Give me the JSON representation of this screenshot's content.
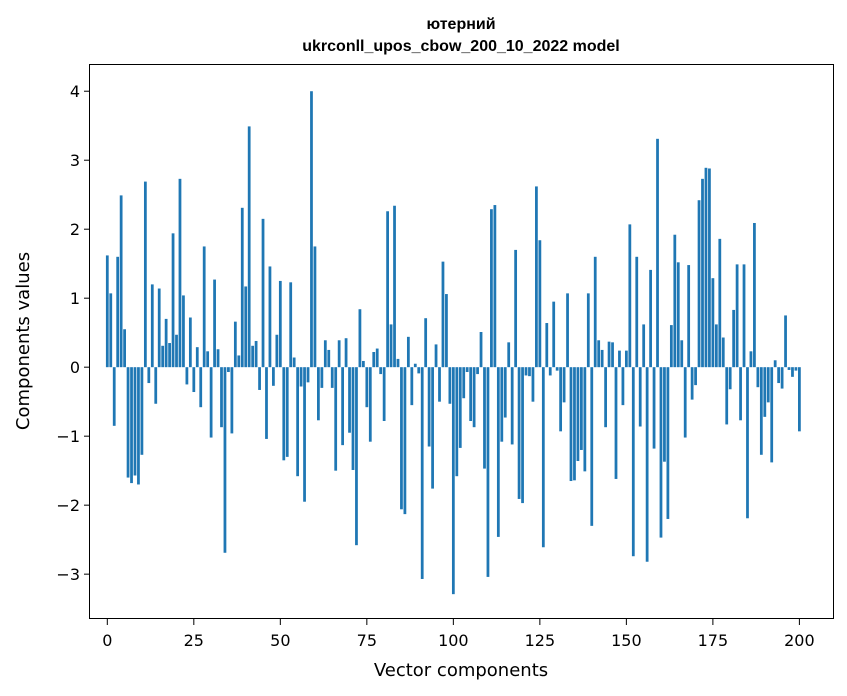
{
  "chart_data": {
    "type": "bar",
    "title": "ютерний",
    "subtitle": "ukrconll_upos_cbow_200_10_2022 model",
    "xlabel": "Vector components",
    "ylabel": "Components values",
    "xlim": [
      -5,
      210
    ],
    "ylim": [
      -3.65,
      4.38
    ],
    "xticks": [
      0,
      25,
      50,
      75,
      100,
      125,
      150,
      175,
      200
    ],
    "yticks": [
      -3,
      -2,
      -1,
      0,
      1,
      2,
      3,
      4
    ],
    "bar_color": "#1f77b4",
    "grid": false,
    "legend": "none",
    "values": [
      1.62,
      1.07,
      -0.85,
      1.6,
      2.49,
      0.55,
      -1.6,
      -1.68,
      -1.57,
      -1.7,
      -1.27,
      2.69,
      -0.23,
      1.2,
      -0.53,
      1.14,
      0.31,
      0.7,
      0.35,
      1.94,
      0.47,
      2.73,
      1.04,
      -0.25,
      0.72,
      -0.36,
      0.29,
      -0.58,
      1.75,
      0.23,
      -1.02,
      1.27,
      0.26,
      -0.87,
      -2.69,
      -0.07,
      -0.96,
      0.66,
      0.17,
      2.31,
      1.17,
      3.49,
      0.31,
      0.38,
      -0.33,
      2.15,
      -1.04,
      1.46,
      -0.27,
      0.47,
      1.25,
      -1.35,
      -1.3,
      1.23,
      0.14,
      -1.58,
      -0.28,
      -1.95,
      -0.22,
      4.0,
      1.75,
      -0.77,
      -0.3,
      0.39,
      0.25,
      -0.3,
      -1.5,
      0.39,
      -1.13,
      0.42,
      -0.95,
      -1.49,
      -2.58,
      0.84,
      0.09,
      -0.58,
      -1.08,
      0.22,
      0.27,
      -0.1,
      -0.78,
      2.26,
      0.62,
      2.34,
      0.12,
      -2.06,
      -2.13,
      0.44,
      -0.55,
      0.05,
      -0.09,
      -3.07,
      0.71,
      -1.15,
      -1.76,
      0.33,
      -0.5,
      1.53,
      1.06,
      -0.53,
      -3.29,
      -1.58,
      -1.17,
      -0.45,
      -0.07,
      -0.78,
      -0.87,
      -0.1,
      0.51,
      -1.47,
      -3.04,
      2.29,
      2.35,
      -2.46,
      -1.08,
      -0.73,
      0.36,
      -1.12,
      1.7,
      -1.91,
      -1.97,
      -0.12,
      -0.13,
      -0.5,
      2.62,
      1.84,
      -2.61,
      0.64,
      -0.12,
      0.95,
      -0.05,
      -0.93,
      -0.51,
      1.07,
      -1.65,
      -1.64,
      -1.36,
      -1.2,
      -1.51,
      1.07,
      -2.3,
      1.6,
      0.39,
      0.25,
      -0.87,
      0.37,
      0.36,
      -1.62,
      0.24,
      -0.55,
      0.24,
      2.07,
      -2.74,
      1.6,
      -0.86,
      0.62,
      -2.82,
      1.41,
      -1.18,
      3.31,
      -2.47,
      -1.37,
      -2.2,
      0.61,
      1.92,
      1.52,
      0.39,
      -1.02,
      1.48,
      -0.47,
      -0.26,
      2.42,
      2.73,
      2.89,
      2.88,
      1.29,
      0.62,
      1.86,
      0.43,
      -0.83,
      -0.32,
      0.83,
      1.49,
      -0.77,
      1.49,
      -2.19,
      0.23,
      2.09,
      -0.29,
      -1.27,
      -0.72,
      -0.51,
      -1.38,
      0.1,
      -0.23,
      -0.31,
      0.75,
      -0.04,
      -0.14,
      -0.05,
      -0.93
    ]
  }
}
